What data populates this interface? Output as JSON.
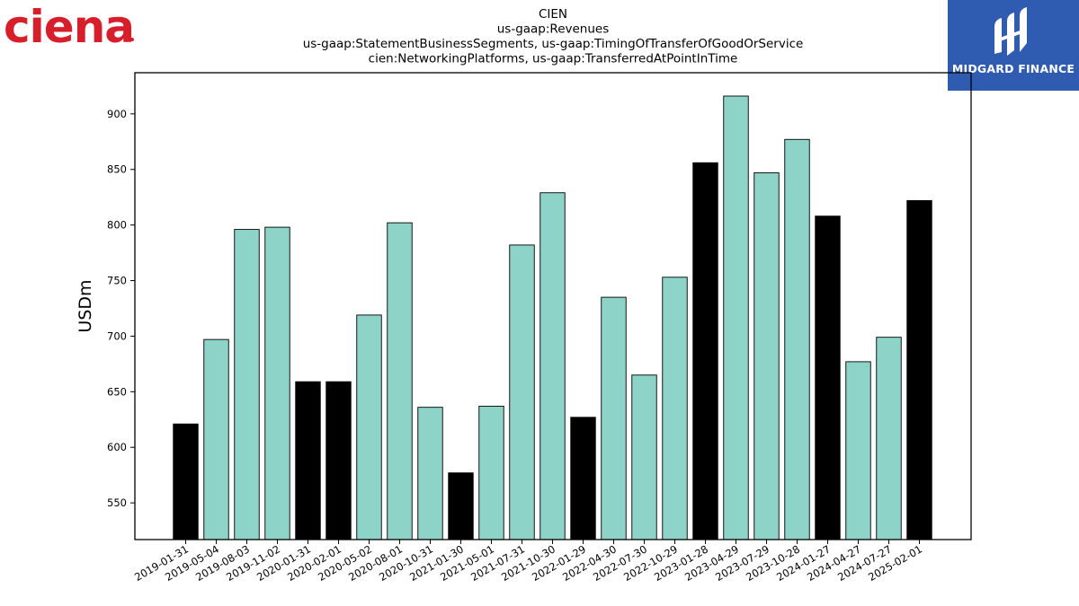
{
  "logos": {
    "left_text": "ciena",
    "right_text": "MIDGARD FINANCE"
  },
  "colors": {
    "bar_teal": "#8dd3c7",
    "bar_black": "#000000",
    "logo_red": "#d71e2b",
    "logo_blue": "#2f5bb0"
  },
  "chart_data": {
    "type": "bar",
    "title": [
      "CIEN",
      "us-gaap:Revenues",
      "us-gaap:StatementBusinessSegments, us-gaap:TimingOfTransferOfGoodOrService",
      "cien:NetworkingPlatforms, us-gaap:TransferredAtPointInTime"
    ],
    "xlabel": "",
    "ylabel": "USDm",
    "ylim": [
      517,
      937
    ],
    "yticks": [
      550,
      600,
      650,
      700,
      750,
      800,
      850,
      900
    ],
    "grid": false,
    "categories": [
      "2019-01-31",
      "2019-05-04",
      "2019-08-03",
      "2019-11-02",
      "2020-01-31",
      "2020-02-01",
      "2020-05-02",
      "2020-08-01",
      "2020-10-31",
      "2021-01-30",
      "2021-05-01",
      "2021-07-31",
      "2021-10-30",
      "2022-01-29",
      "2022-04-30",
      "2022-07-30",
      "2022-10-29",
      "2023-01-28",
      "2023-04-29",
      "2023-07-29",
      "2023-10-28",
      "2024-01-27",
      "2024-04-27",
      "2024-07-27",
      "2025-02-01"
    ],
    "values": [
      621,
      697,
      796,
      798,
      659,
      659,
      719,
      802,
      636,
      577,
      637,
      782,
      829,
      627,
      735,
      665,
      753,
      856,
      916,
      847,
      877,
      808,
      677,
      699,
      822
    ],
    "bar_colors": [
      "black",
      "teal",
      "teal",
      "teal",
      "black",
      "black",
      "teal",
      "teal",
      "teal",
      "black",
      "teal",
      "teal",
      "teal",
      "black",
      "teal",
      "teal",
      "teal",
      "black",
      "teal",
      "teal",
      "teal",
      "black",
      "teal",
      "teal",
      "black"
    ]
  }
}
